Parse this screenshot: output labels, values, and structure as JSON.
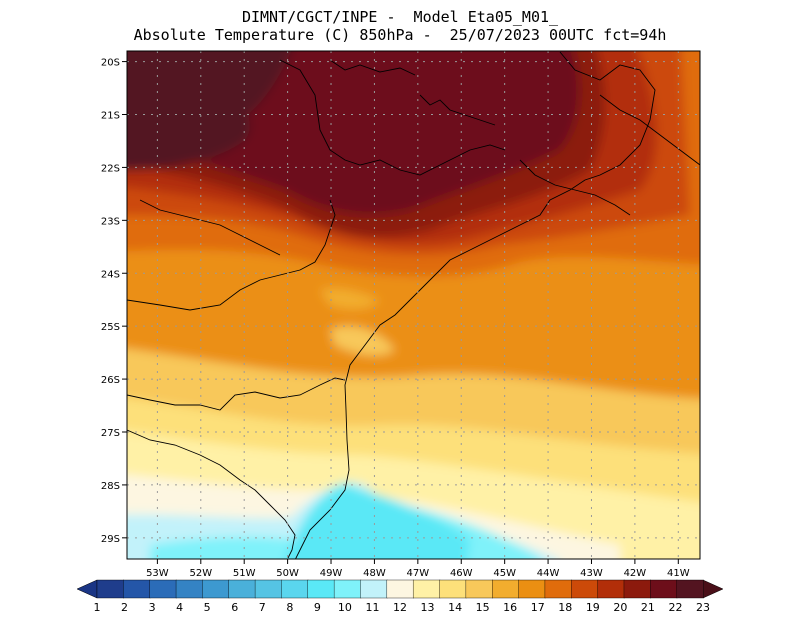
{
  "title": {
    "line1": "DIMNT/CGCT/INPE -  Model Eta05_M01_",
    "line2": "Absolute Temperature (C) 850hPa -  25/07/2023 00UTC fct=94h"
  },
  "map": {
    "lat_labels": [
      "20S",
      "21S",
      "22S",
      "23S",
      "24S",
      "25S",
      "26S",
      "27S",
      "28S",
      "29S"
    ],
    "lon_labels": [
      "53W",
      "52W",
      "51W",
      "50W",
      "49W",
      "48W",
      "47W",
      "46W",
      "45W",
      "44W",
      "43W",
      "42W",
      "41W"
    ],
    "lat_range": [
      -29.4,
      -19.8
    ],
    "lon_range": [
      -53.7,
      -40.5
    ]
  },
  "colorbar": {
    "labels": [
      "1",
      "2",
      "3",
      "4",
      "5",
      "6",
      "7",
      "8",
      "9",
      "10",
      "11",
      "12",
      "13",
      "14",
      "15",
      "16",
      "17",
      "18",
      "19",
      "20",
      "21",
      "22",
      "23"
    ],
    "colors": [
      "#1f3d8c",
      "#2456a8",
      "#2b6cb8",
      "#3483c4",
      "#3d99d0",
      "#4ab0da",
      "#55c4e4",
      "#5ad6ee",
      "#5ae8f6",
      "#7ff2fa",
      "#c2f2fa",
      "#fdf6e1",
      "#fff1a6",
      "#fde07a",
      "#f8c85a",
      "#f2ad2e",
      "#eb8f12",
      "#e06c0c",
      "#cc4a09",
      "#b22e09",
      "#8c1a0d",
      "#6d0e1a",
      "#531420"
    ],
    "low_end_color": "#1a3585",
    "high_end_color": "#4a0f18"
  },
  "icons": [
    "colorbar-left-arrow",
    "colorbar-right-arrow"
  ]
}
